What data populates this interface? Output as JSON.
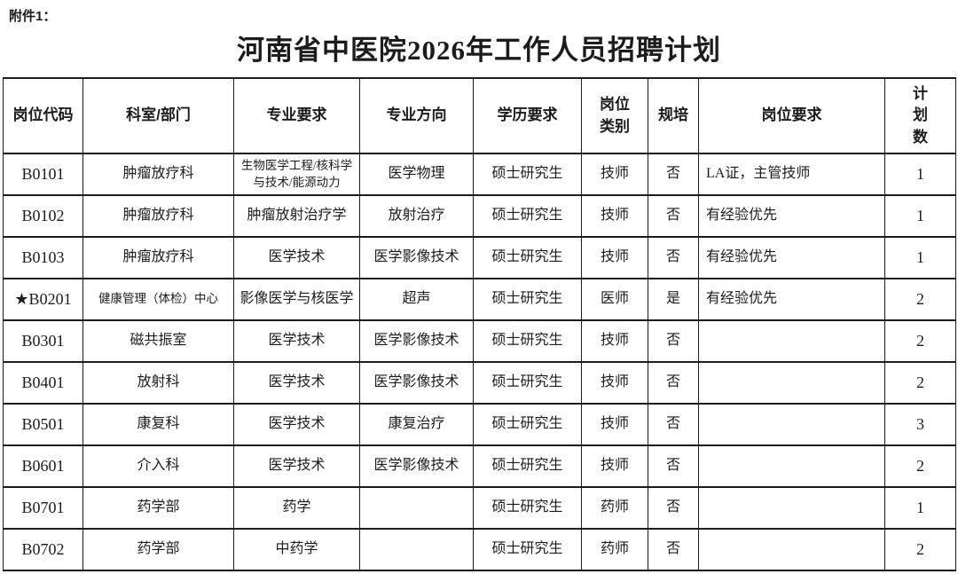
{
  "attachment_label": "附件1：",
  "title": "河南省中医院2026年工作人员招聘计划",
  "colors": {
    "text": "#1c1c1c",
    "border": "#1c1c1c",
    "background": "#ffffff"
  },
  "table": {
    "headers": [
      "岗位代码",
      "科室/部门",
      "专业要求",
      "专业方向",
      "学历要求",
      "岗位类别",
      "规培",
      "岗位要求",
      "计划数"
    ],
    "rows": [
      [
        "B0101",
        "肿瘤放疗科",
        "生物医学工程/核科学与技术/能源动力",
        "医学物理",
        "硕士研究生",
        "技师",
        "否",
        "LA证，主管技师",
        "1"
      ],
      [
        "B0102",
        "肿瘤放疗科",
        "肿瘤放射治疗学",
        "放射治疗",
        "硕士研究生",
        "技师",
        "否",
        "有经验优先",
        "1"
      ],
      [
        "B0103",
        "肿瘤放疗科",
        "医学技术",
        "医学影像技术",
        "硕士研究生",
        "技师",
        "否",
        "有经验优先",
        "1"
      ],
      [
        "★B0201",
        "健康管理（体检）中心",
        "影像医学与核医学",
        "超声",
        "硕士研究生",
        "医师",
        "是",
        "有经验优先",
        "2"
      ],
      [
        "B0301",
        "磁共振室",
        "医学技术",
        "医学影像技术",
        "硕士研究生",
        "技师",
        "否",
        "",
        "2"
      ],
      [
        "B0401",
        "放射科",
        "医学技术",
        "医学影像技术",
        "硕士研究生",
        "技师",
        "否",
        "",
        "2"
      ],
      [
        "B0501",
        "康复科",
        "医学技术",
        "康复治疗",
        "硕士研究生",
        "技师",
        "否",
        "",
        "3"
      ],
      [
        "B0601",
        "介入科",
        "医学技术",
        "医学影像技术",
        "硕士研究生",
        "技师",
        "否",
        "",
        "2"
      ],
      [
        "B0701",
        "药学部",
        "药学",
        "",
        "硕士研究生",
        "药师",
        "否",
        "",
        "1"
      ],
      [
        "B0702",
        "药学部",
        "中药学",
        "",
        "硕士研究生",
        "药师",
        "否",
        "",
        "2"
      ]
    ]
  }
}
